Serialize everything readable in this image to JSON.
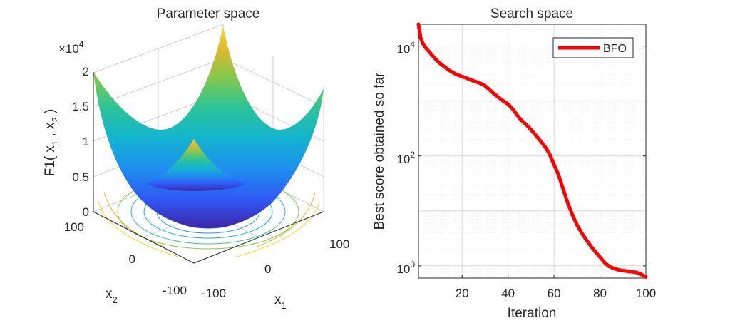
{
  "chart_data": [
    {
      "type": "surface",
      "title": "Parameter space",
      "function": "F1",
      "zlabel_main": "F1( x",
      "zlabel_sub1": "1",
      "zlabel_sep": " , x",
      "zlabel_sub2": "2",
      "zlabel_close": " )",
      "xlabel_main": "x",
      "xlabel_sub": "1",
      "ylabel_main": "x",
      "ylabel_sub": "2",
      "x_ticks": [
        "-100",
        "0",
        "100"
      ],
      "y_ticks": [
        "-100",
        "0",
        "100"
      ],
      "z_ticks": [
        "0",
        "0.5",
        "1",
        "1.5",
        "2"
      ],
      "z_exponent_base": "×10",
      "z_exponent_power": "4",
      "xlim": [
        -100,
        100
      ],
      "ylim": [
        -100,
        100
      ],
      "zlim": [
        0,
        20000
      ],
      "colormap": [
        "#3e26a8",
        "#2f58f6",
        "#1e91ef",
        "#13b5ce",
        "#2dc494",
        "#86c84b",
        "#dcb92f",
        "#f5dc23"
      ]
    },
    {
      "type": "line",
      "title": "Search space",
      "xlabel": "Iteration",
      "ylabel": "Best score obtained so far",
      "yscale": "log",
      "xlim": [
        1,
        100
      ],
      "ylim": [
        0.6,
        25000
      ],
      "x_ticks": [
        "20",
        "40",
        "60",
        "80",
        "100"
      ],
      "y_ticks_base": [
        "10",
        "10",
        "10"
      ],
      "y_ticks_power": [
        "4",
        "2",
        "0"
      ],
      "legend": {
        "label": "BFO",
        "location": "top-right"
      },
      "series": [
        {
          "name": "BFO",
          "color": "#ff0000",
          "x": [
            1,
            2,
            3,
            4,
            5,
            6,
            7,
            8,
            9,
            10,
            12,
            14,
            16,
            18,
            20,
            22,
            24,
            26,
            28,
            30,
            32,
            34,
            36,
            38,
            40,
            42,
            44,
            46,
            48,
            50,
            52,
            54,
            56,
            58,
            60,
            62,
            64,
            66,
            68,
            70,
            72,
            74,
            76,
            78,
            80,
            82,
            84,
            86,
            88,
            90,
            92,
            94,
            96,
            98,
            100
          ],
          "y": [
            25000,
            14000,
            11000,
            9500,
            8500,
            7600,
            6800,
            6100,
            5500,
            5000,
            4300,
            3700,
            3300,
            3000,
            2800,
            2600,
            2400,
            2250,
            2100,
            1900,
            1600,
            1350,
            1150,
            1000,
            880,
            720,
            550,
            440,
            370,
            300,
            240,
            190,
            150,
            110,
            70,
            45,
            25,
            14,
            8.5,
            5.6,
            4.0,
            3.0,
            2.3,
            1.8,
            1.45,
            1.15,
            0.98,
            0.9,
            0.85,
            0.82,
            0.8,
            0.78,
            0.76,
            0.7,
            0.63
          ]
        }
      ]
    }
  ]
}
